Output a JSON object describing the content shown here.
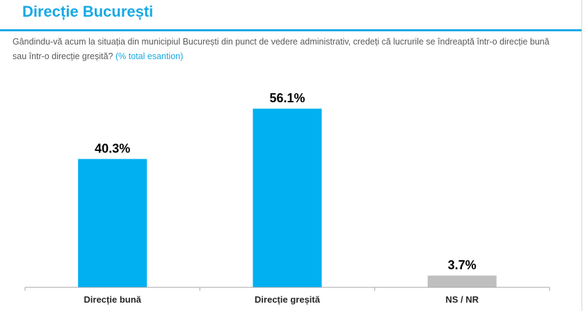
{
  "header": {
    "title": "Direcție București"
  },
  "question": {
    "text": "Gândindu-vă acum la situația din municipiul București din punct de vedere administrativ, credeți că lucrurile se îndreaptă într-o direcție bună sau într-o direcție greșită?",
    "note": "(% total esantion)"
  },
  "colors": {
    "accent": "#16a9e5",
    "bar_primary": "#00b0f0",
    "bar_neutral": "#bfbfbf",
    "text": "#595959"
  },
  "chart_data": {
    "type": "bar",
    "title": "",
    "xlabel": "",
    "ylabel": "",
    "categories": [
      "Direcție bună",
      "Direcție greșită",
      "NS / NR"
    ],
    "values": [
      40.3,
      56.1,
      3.7
    ],
    "value_labels": [
      "40.3%",
      "56.1%",
      "3.7%"
    ],
    "bar_colors": [
      "#00b0f0",
      "#00b0f0",
      "#bfbfbf"
    ],
    "ylim": [
      0,
      64
    ],
    "grid": false,
    "legend": "none"
  }
}
